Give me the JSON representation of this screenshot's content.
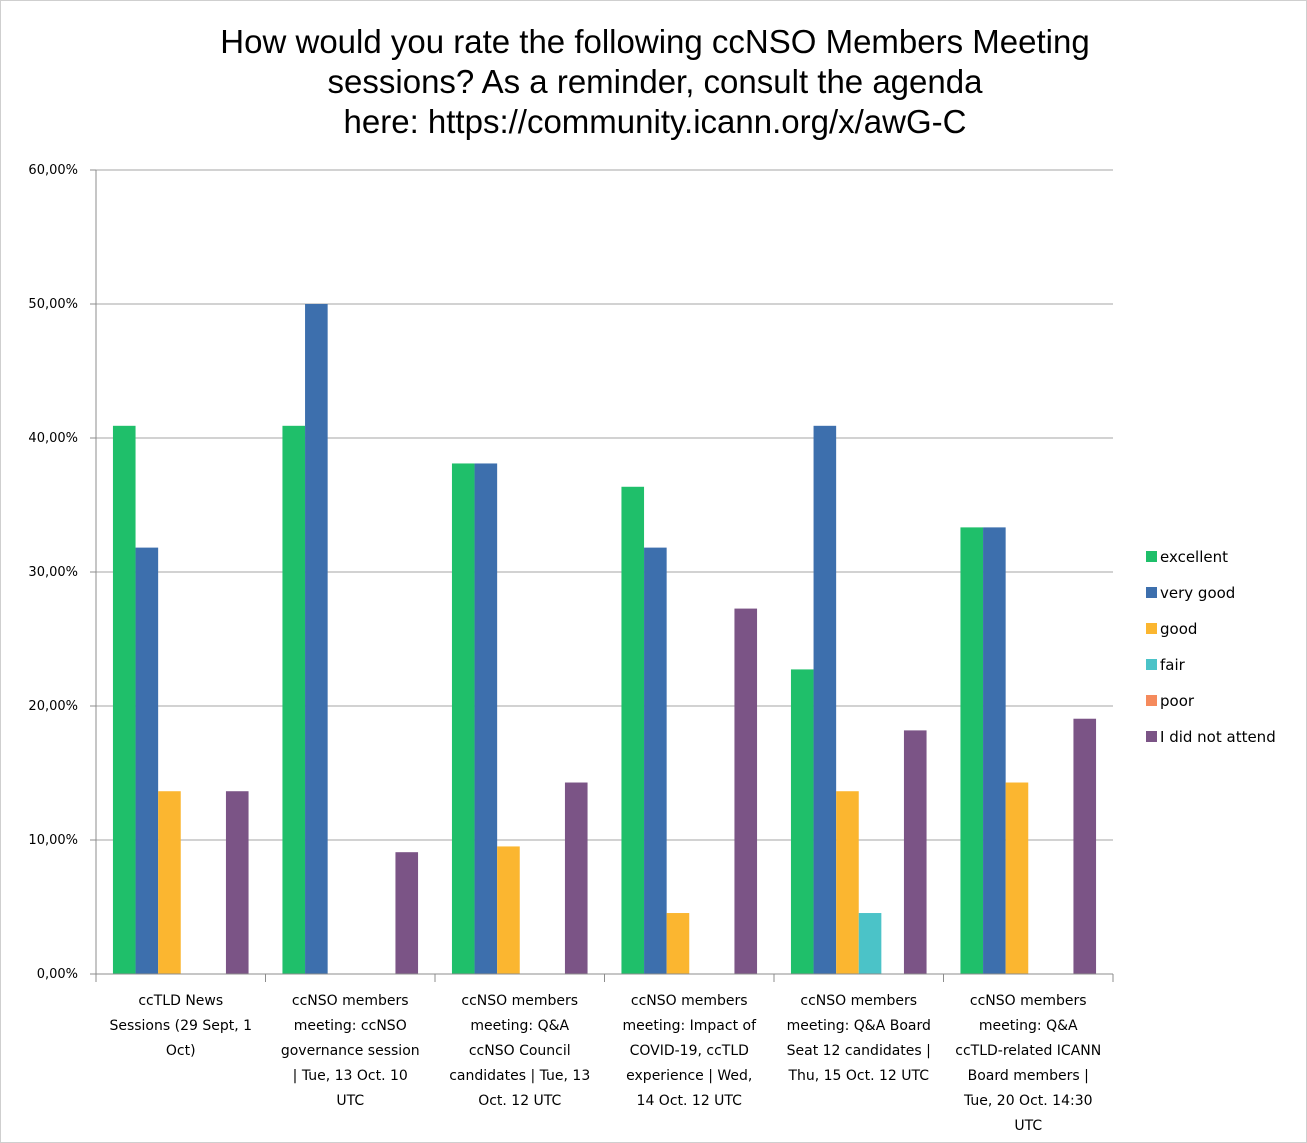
{
  "chart_data": {
    "type": "bar",
    "title": "How would you rate the following ccNSO Members Meeting sessions? As a reminder, consult the agenda here: https://community.icann.org/x/awG-C",
    "title_lines": [
      "How would you rate the following ccNSO Members Meeting",
      "sessions? As a reminder, consult the agenda",
      "here: https://community.icann.org/x/awG-C"
    ],
    "categories": [
      "ccTLD News Sessions (29 Sept, 1 Oct)",
      "ccNSO members meeting: ccNSO governance session | Tue, 13 Oct. 10 UTC",
      "ccNSO members meeting: Q&A ccNSO Council candidates | Tue, 13 Oct. 12 UTC",
      "ccNSO members meeting: Impact of COVID-19, ccTLD experience | Wed, 14 Oct. 12 UTC",
      "ccNSO members meeting: Q&A Board Seat 12 candidates | Thu, 15 Oct. 12 UTC",
      "ccNSO members meeting: Q&A ccTLD-related ICANN Board members | Tue, 20 Oct. 14:30 UTC"
    ],
    "category_label_lines": [
      [
        "ccTLD News",
        "Sessions (29 Sept, 1",
        "Oct)"
      ],
      [
        "ccNSO members",
        "meeting: ccNSO",
        "governance session",
        "| Tue, 13 Oct. 10",
        "UTC"
      ],
      [
        "ccNSO members",
        "meeting: Q&A",
        "ccNSO Council",
        "candidates | Tue, 13",
        "Oct. 12 UTC"
      ],
      [
        "ccNSO members",
        "meeting: Impact of",
        "COVID-19, ccTLD",
        "experience | Wed,",
        "14 Oct. 12 UTC"
      ],
      [
        "ccNSO members",
        "meeting: Q&A Board",
        "Seat 12 candidates |",
        "Thu, 15 Oct. 12 UTC"
      ],
      [
        "ccNSO members",
        "meeting: Q&A",
        "ccTLD-related ICANN",
        "Board members |",
        "Tue, 20 Oct. 14:30",
        "UTC"
      ]
    ],
    "series": [
      {
        "name": "excellent",
        "color": "#1fbf6a",
        "values": [
          40.91,
          40.91,
          38.1,
          36.36,
          22.73,
          33.33
        ]
      },
      {
        "name": "very good",
        "color": "#3d6fad",
        "values": [
          31.82,
          50.0,
          38.1,
          31.82,
          40.91,
          33.33
        ]
      },
      {
        "name": "good",
        "color": "#fbb630",
        "values": [
          13.64,
          0,
          9.52,
          4.55,
          13.64,
          14.29
        ]
      },
      {
        "name": "fair",
        "color": "#4bc3c8",
        "values": [
          0,
          0,
          0,
          0,
          4.55,
          0
        ]
      },
      {
        "name": "poor",
        "color": "#f58a5c",
        "values": [
          0,
          0,
          0,
          0,
          0,
          0
        ]
      },
      {
        "name": "I did not attend",
        "color": "#7b5486",
        "values": [
          13.64,
          9.09,
          14.29,
          27.27,
          18.18,
          19.05
        ]
      }
    ],
    "ylim": [
      0,
      60
    ],
    "y_ticks": [
      0,
      10,
      20,
      30,
      40,
      50,
      60
    ],
    "y_tick_labels": [
      "0,00%",
      "10,00%",
      "20,00%",
      "30,00%",
      "40,00%",
      "50,00%",
      "60,00%"
    ],
    "grid": true,
    "legend": "right"
  }
}
